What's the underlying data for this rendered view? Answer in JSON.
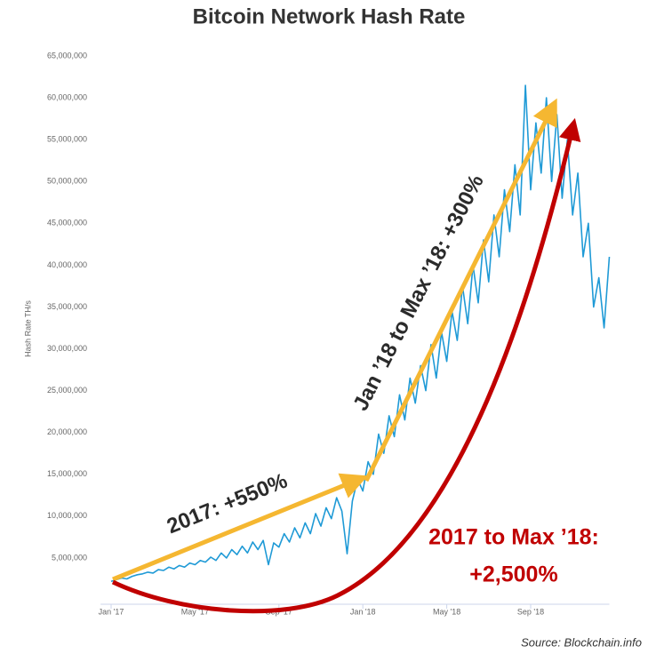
{
  "chart_data": {
    "type": "line",
    "title": "Bitcoin Network Hash Rate",
    "y_label": "Hash Rate TH/s",
    "source": "Source: Blockchain.info",
    "annotations": [
      "2017: +550%",
      "Jan ’18 to Max ’18: +300%",
      "2017 to Max ’18:",
      "+2,500%"
    ],
    "color": "#1f9ad6",
    "xlim": [
      -0.5,
      23.75
    ],
    "xticks": [
      {
        "value": 0,
        "label": "Jan '17"
      },
      {
        "value": 4,
        "label": "May '17"
      },
      {
        "value": 8,
        "label": "Sep '17"
      },
      {
        "value": 12,
        "label": "Jan '18"
      },
      {
        "value": 16,
        "label": "May '18"
      },
      {
        "value": 20,
        "label": "Sep '18"
      }
    ],
    "ylim": [
      0,
      65000000
    ],
    "yticks": [
      {
        "value": 5000000,
        "label": "5,000,000"
      },
      {
        "value": 10000000,
        "label": "10,000,000"
      },
      {
        "value": 15000000,
        "label": "15,000,000"
      },
      {
        "value": 20000000,
        "label": "20,000,000"
      },
      {
        "value": 25000000,
        "label": "25,000,000"
      },
      {
        "value": 30000000,
        "label": "30,000,000"
      },
      {
        "value": 35000000,
        "label": "35,000,000"
      },
      {
        "value": 40000000,
        "label": "40,000,000"
      },
      {
        "value": 45000000,
        "label": "45,000,000"
      },
      {
        "value": 50000000,
        "label": "50,000,000"
      },
      {
        "value": 55000000,
        "label": "55,000,000"
      },
      {
        "value": 60000000,
        "label": "60,000,000"
      },
      {
        "value": 65000000,
        "label": "65,000,000"
      }
    ],
    "x": [
      0,
      0.25,
      0.5,
      0.75,
      1,
      1.25,
      1.5,
      1.75,
      2,
      2.25,
      2.5,
      2.75,
      3,
      3.25,
      3.5,
      3.75,
      4,
      4.25,
      4.5,
      4.75,
      5,
      5.25,
      5.5,
      5.75,
      6,
      6.25,
      6.5,
      6.75,
      7,
      7.25,
      7.5,
      7.75,
      8,
      8.25,
      8.5,
      8.75,
      9,
      9.25,
      9.5,
      9.75,
      10,
      10.25,
      10.5,
      10.75,
      11,
      11.25,
      11.5,
      11.75,
      12,
      12.25,
      12.5,
      12.75,
      13,
      13.25,
      13.5,
      13.75,
      14,
      14.25,
      14.5,
      14.75,
      15,
      15.25,
      15.5,
      15.75,
      16,
      16.25,
      16.5,
      16.75,
      17,
      17.25,
      17.5,
      17.75,
      18,
      18.25,
      18.5,
      18.75,
      19,
      19.25,
      19.5,
      19.75,
      20,
      20.25,
      20.5,
      20.75,
      21,
      21.25,
      21.5,
      21.75,
      22,
      22.25,
      22.5,
      22.75,
      23,
      23.25,
      23.5,
      23.75
    ],
    "values": [
      2200000,
      2400000,
      2600000,
      2500000,
      2800000,
      3000000,
      3100000,
      3300000,
      3200000,
      3600000,
      3500000,
      3900000,
      3700000,
      4100000,
      3900000,
      4400000,
      4200000,
      4700000,
      4500000,
      5100000,
      4700000,
      5600000,
      5000000,
      6000000,
      5400000,
      6400000,
      5600000,
      6900000,
      6000000,
      7100000,
      4200000,
      6800000,
      6300000,
      7900000,
      6900000,
      8600000,
      7400000,
      9200000,
      7900000,
      10300000,
      8800000,
      11000000,
      9700000,
      12200000,
      10600000,
      5500000,
      11800000,
      14400000,
      13000000,
      16500000,
      15000000,
      19800000,
      17500000,
      22000000,
      19500000,
      24500000,
      21500000,
      26500000,
      23500000,
      28000000,
      25000000,
      30500000,
      26500000,
      32000000,
      28500000,
      34500000,
      31000000,
      37500000,
      33000000,
      40000000,
      35500000,
      43000000,
      38000000,
      46000000,
      41000000,
      49000000,
      44000000,
      52000000,
      46000000,
      61500000,
      49000000,
      57000000,
      51000000,
      60000000,
      50000000,
      58000000,
      48000000,
      55000000,
      46000000,
      51000000,
      41000000,
      45000000,
      35000000,
      38500000,
      32500000,
      41000000
    ]
  }
}
